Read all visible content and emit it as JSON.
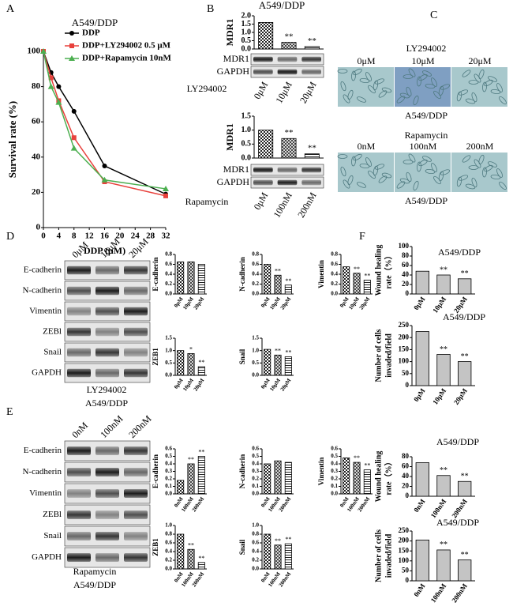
{
  "panel_letters": [
    "A",
    "B",
    "C",
    "D",
    "E",
    "F"
  ],
  "chart_data": [
    {
      "type": "line",
      "title": "A549/DDP",
      "xlabel": "DDP (μM)",
      "ylabel": "Survival rate (%)",
      "x": [
        0,
        2,
        4,
        8,
        16,
        32
      ],
      "xlim": [
        0,
        32
      ],
      "xticks": [
        0,
        4,
        8,
        12,
        16,
        20,
        24,
        28,
        32
      ],
      "ylim": [
        0,
        100
      ],
      "yticks": [
        0,
        20,
        40,
        60,
        80,
        100
      ],
      "series": [
        {
          "name": "DDP",
          "color": "#000000",
          "marker": "circle",
          "values": [
            100,
            88,
            80,
            66,
            35,
            19
          ]
        },
        {
          "name": "DDP+LY294002 0.5 μM",
          "color": "#e8413c",
          "marker": "square",
          "values": [
            100,
            85,
            72,
            51,
            26,
            18
          ]
        },
        {
          "name": "DDP+Rapamycin 10nM",
          "color": "#4caf50",
          "marker": "triangle",
          "values": [
            100,
            80,
            71,
            45,
            27,
            22
          ]
        }
      ]
    },
    {
      "type": "bar",
      "title": "A549/DDP",
      "ylabel": "MDR1",
      "fill": "pattern",
      "values": [
        1.6,
        0.4,
        0.15
      ],
      "annotations": [
        null,
        "**",
        "**"
      ],
      "ylim": [
        0,
        2
      ],
      "yticks": [
        {
          "value": 0,
          "label": "0.0"
        },
        0.5,
        {
          "value": 1,
          "label": "1.0"
        },
        1.5,
        {
          "value": 2,
          "label": "2.0"
        }
      ]
    },
    {
      "type": "bar",
      "ylabel": "MDR1",
      "fill": "pattern",
      "values": [
        1.0,
        0.7,
        0.15
      ],
      "annotations": [
        null,
        "**",
        "**"
      ],
      "ylim": [
        0,
        1.5
      ],
      "yticks": [
        {
          "value": 0,
          "label": "0.0"
        },
        0.5,
        {
          "value": 1,
          "label": "1.0"
        },
        1.5
      ]
    },
    {
      "type": "bar",
      "ylabel": "E-cadherin",
      "fill": "pattern",
      "categories": [
        "0μM",
        "10μM",
        "20μM"
      ],
      "values": [
        0.65,
        0.65,
        0.6
      ],
      "annotations": [
        null,
        null,
        null
      ],
      "ylim": [
        0,
        0.8
      ],
      "yticks": [
        {
          "value": 0,
          "label": "0.0"
        },
        0.2,
        0.4,
        0.6,
        0.8
      ]
    },
    {
      "type": "bar",
      "ylabel": "N-cadherin",
      "fill": "pattern",
      "categories": [
        "0μM",
        "10μM",
        "20μM"
      ],
      "values": [
        0.6,
        0.38,
        0.18
      ],
      "annotations": [
        null,
        "**",
        "**"
      ],
      "ylim": [
        0,
        0.8
      ],
      "yticks": [
        {
          "value": 0,
          "label": "0.0"
        },
        0.2,
        0.4,
        0.6,
        0.8
      ]
    },
    {
      "type": "bar",
      "ylabel": "Vimentin",
      "fill": "pattern",
      "categories": [
        "0μM",
        "10μM",
        "20μM"
      ],
      "values": [
        0.55,
        0.42,
        0.28
      ],
      "annotations": [
        null,
        "**",
        "**"
      ],
      "ylim": [
        0,
        0.8
      ],
      "yticks": [
        {
          "value": 0,
          "label": "0.0"
        },
        0.2,
        0.4,
        0.6,
        0.8
      ]
    },
    {
      "type": "bar",
      "ylabel": "ZEB1",
      "fill": "pattern",
      "categories": [
        "0μM",
        "10μM",
        "20μM"
      ],
      "values": [
        1.0,
        0.88,
        0.35
      ],
      "annotations": [
        null,
        "*",
        "**"
      ],
      "ylim": [
        0,
        1.5
      ],
      "yticks": [
        {
          "value": 0,
          "label": "0.0"
        },
        0.5,
        {
          "value": 1,
          "label": "1.0"
        },
        1.5
      ]
    },
    {
      "type": "bar",
      "ylabel": "Snail",
      "fill": "pattern",
      "categories": [
        "0μM",
        "10μM",
        "20μM"
      ],
      "values": [
        1.05,
        0.82,
        0.75
      ],
      "annotations": [
        null,
        "**",
        "**"
      ],
      "ylim": [
        0,
        1.5
      ],
      "yticks": [
        {
          "value": 0,
          "label": "0.0"
        },
        0.5,
        {
          "value": 1,
          "label": "1.0"
        },
        1.5
      ]
    },
    {
      "type": "bar",
      "ylabel": "E-cadherin",
      "fill": "pattern",
      "categories": [
        "0nM",
        "100nM",
        "200nM"
      ],
      "values": [
        0.18,
        0.4,
        0.5
      ],
      "annotations": [
        null,
        "**",
        "**"
      ],
      "ylim": [
        0,
        0.6
      ],
      "yticks": [
        {
          "value": 0,
          "label": "0.0"
        },
        0.1,
        0.2,
        0.3,
        0.4,
        0.5,
        0.6
      ]
    },
    {
      "type": "bar",
      "ylabel": "N-cadherin",
      "fill": "pattern",
      "categories": [
        "0nM",
        "100nM",
        "200nM"
      ],
      "values": [
        0.4,
        0.44,
        0.42
      ],
      "annotations": [
        null,
        null,
        null
      ],
      "ylim": [
        0,
        0.6
      ],
      "yticks": [
        {
          "value": 0,
          "label": "0.0"
        },
        0.1,
        0.2,
        0.3,
        0.4,
        0.5,
        0.6
      ]
    },
    {
      "type": "bar",
      "ylabel": "Vimentin",
      "fill": "pattern",
      "categories": [
        "0nM",
        "100nM",
        "200nM"
      ],
      "values": [
        0.48,
        0.42,
        0.32
      ],
      "annotations": [
        null,
        "**",
        "**"
      ],
      "ylim": [
        0,
        0.6
      ],
      "yticks": [
        {
          "value": 0,
          "label": "0.0"
        },
        0.1,
        0.2,
        0.3,
        0.4,
        0.5,
        0.6
      ]
    },
    {
      "type": "bar",
      "ylabel": "ZEB1",
      "fill": "pattern",
      "categories": [
        "0nM",
        "100nM",
        "200nM"
      ],
      "values": [
        0.8,
        0.45,
        0.15
      ],
      "annotations": [
        null,
        "**",
        "**"
      ],
      "ylim": [
        0,
        1
      ],
      "yticks": [
        {
          "value": 0,
          "label": "0.0"
        },
        0.2,
        0.4,
        0.6,
        0.8,
        {
          "value": 1,
          "label": "1.0"
        }
      ]
    },
    {
      "type": "bar",
      "ylabel": "Snail",
      "fill": "pattern",
      "categories": [
        "0nM",
        "100nM",
        "200nM"
      ],
      "values": [
        0.8,
        0.55,
        0.58
      ],
      "annotations": [
        null,
        "**",
        "**"
      ],
      "ylim": [
        0,
        1
      ],
      "yticks": [
        {
          "value": 0,
          "label": "0.0"
        },
        0.2,
        0.4,
        0.6,
        0.8,
        {
          "value": 1,
          "label": "1.0"
        }
      ]
    },
    {
      "type": "bar",
      "title": "A549/DDP",
      "ylabel": [
        "Wound healing",
        "rate（%）"
      ],
      "fill": "#c4c4c4",
      "categories": [
        "0μM",
        "10μM",
        "20μM"
      ],
      "values": [
        48,
        40,
        32
      ],
      "annotations": [
        null,
        "**",
        "**"
      ],
      "ylim": [
        0,
        100
      ],
      "yticks": [
        0,
        20,
        40,
        60,
        80,
        100
      ]
    },
    {
      "type": "bar",
      "title": "A549/DDP",
      "ylabel": [
        "Number of cells",
        "invaded/field"
      ],
      "fill": "#c4c4c4",
      "categories": [
        "0μM",
        "10μM",
        "20μM"
      ],
      "values": [
        225,
        130,
        100
      ],
      "annotations": [
        null,
        "**",
        "**"
      ],
      "ylim": [
        0,
        250
      ],
      "yticks": [
        0,
        50,
        100,
        150,
        200,
        250
      ]
    },
    {
      "type": "bar",
      "title": "A549/DDP",
      "ylabel": [
        "Wound healing",
        "rate（%）"
      ],
      "fill": "#c4c4c4",
      "categories": [
        "0nM",
        "100nM",
        "200nM"
      ],
      "values": [
        68,
        42,
        30
      ],
      "annotations": [
        null,
        "**",
        "**"
      ],
      "ylim": [
        0,
        80
      ],
      "yticks": [
        0,
        20,
        40,
        60,
        80
      ]
    },
    {
      "type": "bar",
      "title": "A549/DDP",
      "ylabel": [
        "Number of cells",
        "invaded/field"
      ],
      "fill": "#c4c4c4",
      "categories": [
        "0nM",
        "100nM",
        "200nM"
      ],
      "values": [
        205,
        155,
        105
      ],
      "annotations": [
        null,
        "**",
        "**"
      ],
      "ylim": [
        0,
        250
      ],
      "yticks": [
        0,
        50,
        100,
        150,
        200,
        250
      ]
    }
  ],
  "blots": [
    {
      "rows": [
        "MDR1",
        "GAPDH"
      ],
      "treatment": "LY294002",
      "columns": [
        "0μM",
        "10μM",
        "20μM"
      ]
    },
    {
      "rows": [
        "MDR1",
        "GAPDH"
      ],
      "treatment": "Rapamycin",
      "columns": [
        "0μM",
        "100nM",
        "200nM"
      ]
    },
    {
      "rows": [
        "E-cadherin",
        "N-cadherin",
        "Vimentin",
        "ZEBl",
        "Snail",
        "GAPDH"
      ],
      "treatment": "LY294002",
      "cell_line": "A549/DDP",
      "columns": [
        "0μM",
        "10μM",
        "20μM"
      ]
    },
    {
      "rows": [
        "E-cadherin",
        "N-cadherin",
        "Vimentin",
        "ZEBl",
        "Snail",
        "GAPDH"
      ],
      "treatment": "Rapamycin",
      "cell_line": "A549/DDP",
      "columns": [
        "0nM",
        "100nM",
        "200nM"
      ]
    }
  ],
  "images": [
    {
      "treatment": "LY294002",
      "columns": [
        "0μM",
        "10μM",
        "20μM"
      ],
      "cell_line": "A549/DDP"
    },
    {
      "treatment": "Rapamycin",
      "columns": [
        "0nM",
        "100nM",
        "200nM"
      ],
      "cell_line": "A549/DDP"
    }
  ]
}
